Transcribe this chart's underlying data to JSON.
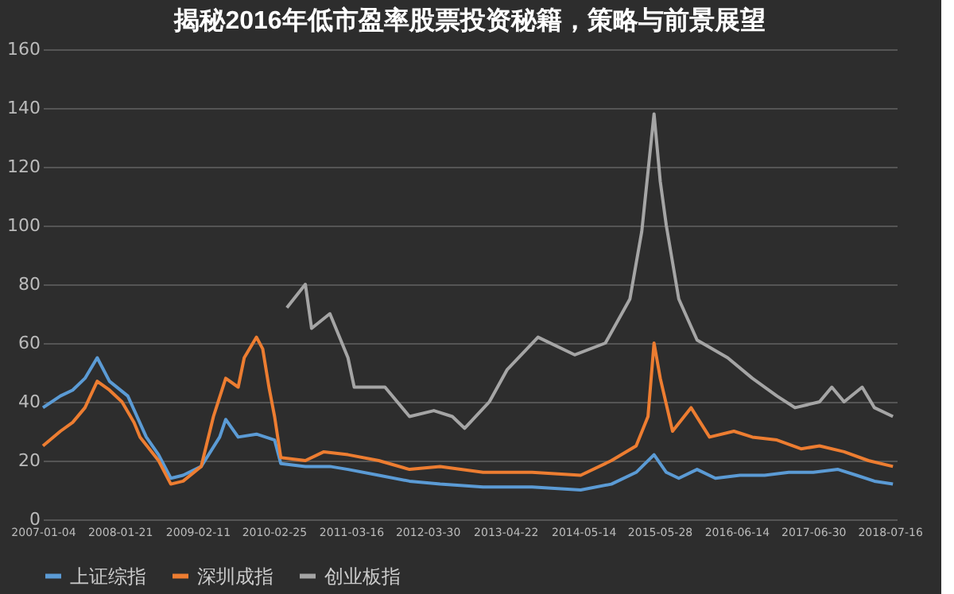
{
  "chart_data": {
    "type": "line",
    "title": "揭秘2016年低市盈率股票投资秘籍，策略与前景展望",
    "xlim": [
      "2007-01-04",
      "2018-08-20"
    ],
    "xticks": [
      "2007-01-04",
      "2008-01-21",
      "2009-02-11",
      "2010-02-25",
      "2011-03-16",
      "2012-03-30",
      "2013-04-22",
      "2014-05-14",
      "2015-05-28",
      "2016-06-14",
      "2017-06-30",
      "2018-07-16"
    ],
    "ylim": [
      0,
      160
    ],
    "yticks": [
      0,
      20,
      40,
      60,
      80,
      100,
      120,
      140,
      160
    ],
    "grid": "y",
    "legend": "bottom",
    "line_style": "solid",
    "marker": "none",
    "series": [
      {
        "name": "上证综指",
        "color": "#5b9bd5",
        "x": [
          "2007-01-04",
          "2007-04",
          "2007-06",
          "2007-08",
          "2007-10",
          "2007-12",
          "2008-03",
          "2008-06",
          "2008-08",
          "2008-10",
          "2008-12",
          "2009-03",
          "2009-06",
          "2009-07",
          "2009-09",
          "2009-12",
          "2010-03",
          "2010-04",
          "2010-08",
          "2010-12",
          "2011-03",
          "2011-08",
          "2012-01",
          "2012-06",
          "2013-01",
          "2013-09",
          "2014-05",
          "2014-10",
          "2015-02",
          "2015-05",
          "2015-07",
          "2015-09",
          "2015-12",
          "2016-03",
          "2016-07",
          "2016-11",
          "2017-03",
          "2017-07",
          "2017-11",
          "2018-02",
          "2018-05",
          "2018-08"
        ],
        "values": [
          38,
          42,
          44,
          48,
          55,
          47,
          42,
          28,
          22,
          14,
          15,
          18,
          28,
          34,
          28,
          29,
          27,
          19,
          18,
          18,
          17,
          15,
          13,
          12,
          11,
          11,
          10,
          12,
          16,
          22,
          16,
          14,
          17,
          14,
          15,
          15,
          16,
          16,
          17,
          15,
          13,
          12
        ]
      },
      {
        "name": "深圳成指",
        "color": "#ed7d31",
        "x": [
          "2007-01-04",
          "2007-04",
          "2007-06",
          "2007-08",
          "2007-10",
          "2007-12",
          "2008-02",
          "2008-04",
          "2008-05",
          "2008-08",
          "2008-10",
          "2008-12",
          "2009-03",
          "2009-05",
          "2009-07",
          "2009-09",
          "2009-10",
          "2009-12",
          "2010-01",
          "2010-02",
          "2010-03",
          "2010-04",
          "2010-08",
          "2010-11",
          "2011-03",
          "2011-08",
          "2012-01",
          "2012-06",
          "2013-01",
          "2013-09",
          "2014-05",
          "2014-10",
          "2015-02",
          "2015-04",
          "2015-05",
          "2015-06",
          "2015-08",
          "2015-11",
          "2016-02",
          "2016-06",
          "2016-09",
          "2017-01",
          "2017-05",
          "2017-08",
          "2017-12",
          "2018-04",
          "2018-08"
        ],
        "values": [
          25,
          30,
          33,
          38,
          47,
          44,
          40,
          33,
          28,
          20,
          12,
          13,
          18,
          35,
          48,
          45,
          55,
          62,
          58,
          45,
          35,
          21,
          20,
          23,
          22,
          20,
          17,
          18,
          16,
          16,
          15,
          20,
          25,
          35,
          60,
          48,
          30,
          38,
          28,
          30,
          28,
          27,
          24,
          25,
          23,
          20,
          18
        ]
      },
      {
        "name": "创业板指",
        "color": "#a5a5a5",
        "x": [
          "2010-05",
          "2010-08",
          "2010-09",
          "2010-12",
          "2011-03",
          "2011-04",
          "2011-09",
          "2012-01",
          "2012-05",
          "2012-08",
          "2012-10",
          "2013-02",
          "2013-05",
          "2013-10",
          "2014-04",
          "2014-09",
          "2015-01",
          "2015-03",
          "2015-05",
          "2015-06",
          "2015-07",
          "2015-09",
          "2015-12",
          "2016-05",
          "2016-09",
          "2017-01",
          "2017-04",
          "2017-08",
          "2017-10",
          "2017-12",
          "2018-03",
          "2018-05",
          "2018-08"
        ],
        "values": [
          72,
          80,
          65,
          70,
          55,
          45,
          45,
          35,
          37,
          35,
          31,
          40,
          51,
          62,
          56,
          60,
          75,
          98,
          138,
          115,
          100,
          75,
          61,
          55,
          48,
          42,
          38,
          40,
          45,
          40,
          45,
          38,
          35
        ]
      }
    ]
  }
}
